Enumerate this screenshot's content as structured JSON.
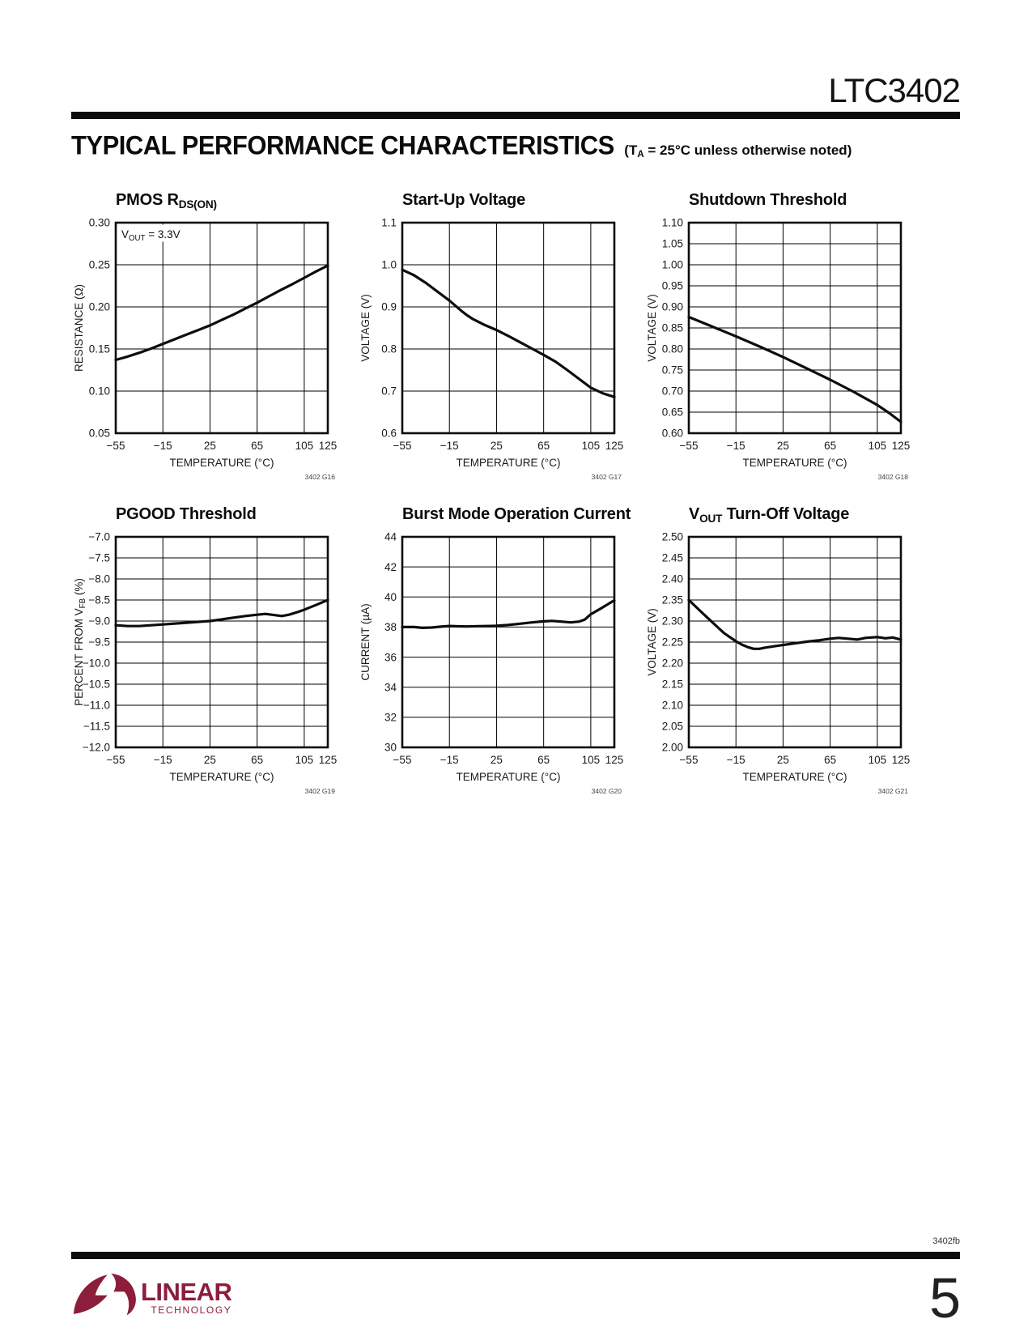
{
  "header": {
    "part_number": "LTC3402",
    "section_title": "TYPICAL PERFORMANCE CHARACTERISTICS",
    "section_subtitle": "(T_{A} = 25°C unless otherwise noted)"
  },
  "footer": {
    "doc_code": "3402fb",
    "page_number": "5",
    "logo_linear": "LINEAR",
    "logo_technology": "TECHNOLOGY"
  },
  "chart_data": [
    {
      "id": "pmos-rdson",
      "type": "line",
      "title": "PMOS R_{DS(ON)}",
      "annotation": "V_{OUT} = 3.3V",
      "code": "3402 G16",
      "xlabel": "TEMPERATURE (°C)",
      "ylabel": "RESISTANCE (Ω)",
      "xlim": [
        -55,
        125
      ],
      "xgrid": [
        -15,
        25,
        65,
        105
      ],
      "xtick_values": [
        -55,
        -15,
        25,
        65,
        105,
        125
      ],
      "xtick_labels": [
        "−55",
        "−15",
        "25",
        "65",
        "105",
        "125"
      ],
      "ylim": [
        0.05,
        0.3
      ],
      "ytick_values": [
        0.05,
        0.1,
        0.15,
        0.2,
        0.25,
        0.3
      ],
      "ytick_labels": [
        "0.05",
        "0.10",
        "0.15",
        "0.20",
        "0.25",
        "0.30"
      ],
      "points": [
        [
          -55,
          0.137
        ],
        [
          -45,
          0.141
        ],
        [
          -35,
          0.1455
        ],
        [
          -25,
          0.1505
        ],
        [
          -15,
          0.156
        ],
        [
          -5,
          0.1615
        ],
        [
          5,
          0.167
        ],
        [
          15,
          0.1725
        ],
        [
          25,
          0.178
        ],
        [
          35,
          0.1845
        ],
        [
          45,
          0.191
        ],
        [
          55,
          0.198
        ],
        [
          65,
          0.205
        ],
        [
          75,
          0.2125
        ],
        [
          85,
          0.22
        ],
        [
          95,
          0.227
        ],
        [
          105,
          0.2345
        ],
        [
          115,
          0.242
        ],
        [
          125,
          0.249
        ]
      ]
    },
    {
      "id": "startup-voltage",
      "type": "line",
      "title": "Start-Up Voltage",
      "annotation": null,
      "code": "3402 G17",
      "xlabel": "TEMPERATURE (°C)",
      "ylabel": "VOLTAGE (V)",
      "xlim": [
        -55,
        125
      ],
      "xgrid": [
        -15,
        25,
        65,
        105
      ],
      "xtick_values": [
        -55,
        -15,
        25,
        65,
        105,
        125
      ],
      "xtick_labels": [
        "−55",
        "−15",
        "25",
        "65",
        "105",
        "125"
      ],
      "ylim": [
        0.6,
        1.1
      ],
      "ytick_values": [
        0.6,
        0.7,
        0.8,
        0.9,
        1.0,
        1.1
      ],
      "ytick_labels": [
        "0.6",
        "0.7",
        "0.8",
        "0.9",
        "1.0",
        "1.1"
      ],
      "points": [
        [
          -55,
          0.988
        ],
        [
          -45,
          0.975
        ],
        [
          -35,
          0.957
        ],
        [
          -25,
          0.936
        ],
        [
          -15,
          0.915
        ],
        [
          -5,
          0.891
        ],
        [
          0,
          0.88
        ],
        [
          5,
          0.871
        ],
        [
          15,
          0.857
        ],
        [
          25,
          0.845
        ],
        [
          35,
          0.831
        ],
        [
          45,
          0.816
        ],
        [
          55,
          0.801
        ],
        [
          65,
          0.786
        ],
        [
          75,
          0.77
        ],
        [
          85,
          0.75
        ],
        [
          95,
          0.729
        ],
        [
          105,
          0.708
        ],
        [
          115,
          0.695
        ],
        [
          125,
          0.686
        ]
      ]
    },
    {
      "id": "shutdown-threshold",
      "type": "line",
      "title": "Shutdown Threshold",
      "annotation": null,
      "code": "3402 G18",
      "xlabel": "TEMPERATURE (°C)",
      "ylabel": "VOLTAGE (V)",
      "xlim": [
        -55,
        125
      ],
      "xgrid": [
        -15,
        25,
        65,
        105
      ],
      "xtick_values": [
        -55,
        -15,
        25,
        65,
        105,
        125
      ],
      "xtick_labels": [
        "−55",
        "−15",
        "25",
        "65",
        "105",
        "125"
      ],
      "ylim": [
        0.6,
        1.1
      ],
      "ytick_values": [
        0.6,
        0.65,
        0.7,
        0.75,
        0.8,
        0.85,
        0.9,
        0.95,
        1.0,
        1.05,
        1.1
      ],
      "ytick_labels": [
        "0.60",
        "0.65",
        "0.70",
        "0.75",
        "0.80",
        "0.85",
        "0.90",
        "0.95",
        "1.00",
        "1.05",
        "1.10"
      ],
      "points": [
        [
          -55,
          0.876
        ],
        [
          -35,
          0.853
        ],
        [
          -15,
          0.83
        ],
        [
          5,
          0.806
        ],
        [
          25,
          0.781
        ],
        [
          45,
          0.754
        ],
        [
          65,
          0.727
        ],
        [
          85,
          0.698
        ],
        [
          105,
          0.667
        ],
        [
          115,
          0.648
        ],
        [
          125,
          0.627
        ]
      ]
    },
    {
      "id": "pgood-threshold",
      "type": "line",
      "title": "PGOOD Threshold",
      "annotation": null,
      "code": "3402 G19",
      "xlabel": "TEMPERATURE (°C)",
      "ylabel": "PERCENT FROM V_{FB} (%)",
      "xlim": [
        -55,
        125
      ],
      "xgrid": [
        -15,
        25,
        65,
        105
      ],
      "xtick_values": [
        -55,
        -15,
        25,
        65,
        105,
        125
      ],
      "xtick_labels": [
        "−55",
        "−15",
        "25",
        "65",
        "105",
        "125"
      ],
      "ylim": [
        -12.0,
        -7.0
      ],
      "ytick_values": [
        -12.0,
        -11.5,
        -11.0,
        -10.5,
        -10.0,
        -9.5,
        -9.0,
        -8.5,
        -8.0,
        -7.5,
        -7.0
      ],
      "ytick_labels": [
        "−12.0",
        "−11.5",
        "−11.0",
        "−10.5",
        "−10.0",
        "−9.5",
        "−9.0",
        "−8.5",
        "−8.0",
        "−7.5",
        "−7.0"
      ],
      "points": [
        [
          -55,
          -9.1
        ],
        [
          -45,
          -9.12
        ],
        [
          -35,
          -9.12
        ],
        [
          -25,
          -9.1
        ],
        [
          -15,
          -9.08
        ],
        [
          -5,
          -9.06
        ],
        [
          5,
          -9.04
        ],
        [
          15,
          -9.02
        ],
        [
          25,
          -9.0
        ],
        [
          35,
          -8.96
        ],
        [
          45,
          -8.92
        ],
        [
          55,
          -8.88
        ],
        [
          65,
          -8.85
        ],
        [
          72,
          -8.83
        ],
        [
          80,
          -8.86
        ],
        [
          86,
          -8.88
        ],
        [
          92,
          -8.85
        ],
        [
          100,
          -8.78
        ],
        [
          105,
          -8.73
        ],
        [
          115,
          -8.62
        ],
        [
          125,
          -8.5
        ]
      ]
    },
    {
      "id": "burst-mode-current",
      "type": "line",
      "title": "Burst Mode Operation Current",
      "annotation": null,
      "code": "3402 G20",
      "xlabel": "TEMPERATURE (°C)",
      "ylabel": "CURRENT (µA)",
      "xlim": [
        -55,
        125
      ],
      "xgrid": [
        -15,
        25,
        65,
        105
      ],
      "xtick_values": [
        -55,
        -15,
        25,
        65,
        105,
        125
      ],
      "xtick_labels": [
        "−55",
        "−15",
        "25",
        "65",
        "105",
        "125"
      ],
      "ylim": [
        30,
        44
      ],
      "ytick_values": [
        30,
        32,
        34,
        36,
        38,
        40,
        42,
        44
      ],
      "ytick_labels": [
        "30",
        "32",
        "34",
        "36",
        "38",
        "40",
        "42",
        "44"
      ],
      "points": [
        [
          -55,
          38.0
        ],
        [
          -45,
          38.0
        ],
        [
          -38,
          37.95
        ],
        [
          -30,
          37.97
        ],
        [
          -22,
          38.03
        ],
        [
          -15,
          38.07
        ],
        [
          -8,
          38.05
        ],
        [
          0,
          38.04
        ],
        [
          10,
          38.06
        ],
        [
          20,
          38.07
        ],
        [
          25,
          38.08
        ],
        [
          35,
          38.14
        ],
        [
          45,
          38.22
        ],
        [
          55,
          38.31
        ],
        [
          65,
          38.38
        ],
        [
          72,
          38.41
        ],
        [
          80,
          38.36
        ],
        [
          88,
          38.31
        ],
        [
          95,
          38.36
        ],
        [
          100,
          38.5
        ],
        [
          105,
          38.85
        ],
        [
          115,
          39.3
        ],
        [
          125,
          39.78
        ]
      ]
    },
    {
      "id": "vout-turnoff-voltage",
      "type": "line",
      "title": "V_{OUT} Turn-Off Voltage",
      "annotation": null,
      "code": "3402 G21",
      "xlabel": "TEMPERATURE (°C)",
      "ylabel": "VOLTAGE (V)",
      "xlim": [
        -55,
        125
      ],
      "xgrid": [
        -15,
        25,
        65,
        105
      ],
      "xtick_values": [
        -55,
        -15,
        25,
        65,
        105,
        125
      ],
      "xtick_labels": [
        "−55",
        "−15",
        "25",
        "65",
        "105",
        "125"
      ],
      "ylim": [
        2.0,
        2.5
      ],
      "ytick_values": [
        2.0,
        2.05,
        2.1,
        2.15,
        2.2,
        2.25,
        2.3,
        2.35,
        2.4,
        2.45,
        2.5
      ],
      "ytick_labels": [
        "2.00",
        "2.05",
        "2.10",
        "2.15",
        "2.20",
        "2.25",
        "2.30",
        "2.35",
        "2.40",
        "2.45",
        "2.50"
      ],
      "points": [
        [
          -55,
          2.35
        ],
        [
          -45,
          2.323
        ],
        [
          -35,
          2.297
        ],
        [
          -25,
          2.271
        ],
        [
          -15,
          2.252
        ],
        [
          -10,
          2.244
        ],
        [
          -5,
          2.238
        ],
        [
          0,
          2.234
        ],
        [
          5,
          2.234
        ],
        [
          10,
          2.237
        ],
        [
          15,
          2.239
        ],
        [
          25,
          2.243
        ],
        [
          35,
          2.247
        ],
        [
          45,
          2.251
        ],
        [
          55,
          2.254
        ],
        [
          65,
          2.258
        ],
        [
          72,
          2.26
        ],
        [
          80,
          2.258
        ],
        [
          88,
          2.256
        ],
        [
          95,
          2.26
        ],
        [
          105,
          2.262
        ],
        [
          112,
          2.259
        ],
        [
          118,
          2.261
        ],
        [
          125,
          2.256
        ]
      ]
    }
  ],
  "style": {
    "line_color": "#0d0d0d",
    "grid_color": "#000000",
    "logo_color": "#8C1D3B"
  }
}
